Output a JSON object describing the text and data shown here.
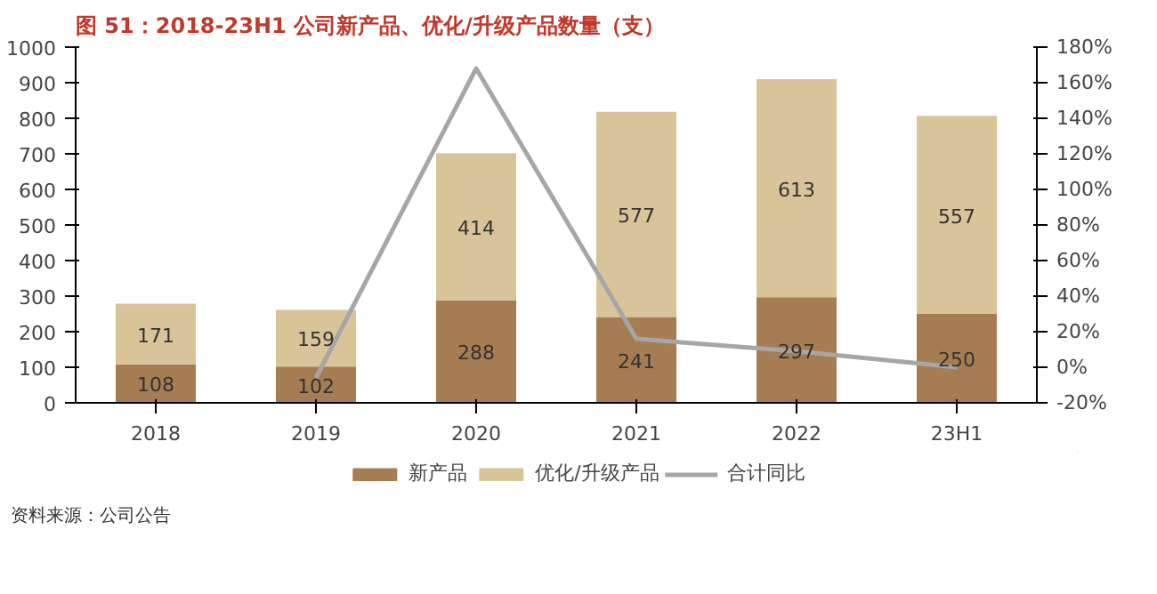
{
  "chart_data": {
    "type": "bar",
    "title": "图 51：2018-23H1 公司新产品、优化/升级产品数量（支）",
    "categories": [
      "2018",
      "2019",
      "2020",
      "2021",
      "2022",
      "23H1"
    ],
    "stacked": true,
    "legend": "bottom",
    "grid": false,
    "series": [
      {
        "name": "新产品",
        "color": "#a67c52",
        "values": [
          108,
          102,
          288,
          241,
          297,
          250
        ],
        "value_labels": [
          "108",
          "102",
          "288",
          "241",
          "297",
          "250"
        ]
      },
      {
        "name": "优化/升级产品",
        "color": "#d9c49a",
        "values": [
          171,
          159,
          414,
          577,
          613,
          557
        ],
        "value_labels": [
          "171",
          "159",
          "414",
          "577",
          "613",
          "557"
        ]
      },
      {
        "name": "合计同比",
        "type": "line",
        "axis": "y2",
        "color": "#a6a6a6",
        "values": [
          null,
          -6,
          168,
          16,
          9,
          0
        ]
      }
    ],
    "ylim": [
      0,
      1000
    ],
    "yticks": [
      0,
      100,
      200,
      300,
      400,
      500,
      600,
      700,
      800,
      900,
      1000
    ],
    "y2lim": [
      -20,
      180
    ],
    "y2ticks": [
      {
        "value": -20,
        "label": "-20%"
      },
      {
        "value": 0,
        "label": "0%"
      },
      {
        "value": 20,
        "label": "20%"
      },
      {
        "value": 40,
        "label": "40%"
      },
      {
        "value": 60,
        "label": "60%"
      },
      {
        "value": 80,
        "label": "80%"
      },
      {
        "value": 100,
        "label": "100%"
      },
      {
        "value": 120,
        "label": "120%"
      },
      {
        "value": 140,
        "label": "140%"
      },
      {
        "value": 160,
        "label": "160%"
      },
      {
        "value": 180,
        "label": "180%"
      }
    ],
    "annotations": [
      "资料来源：公司公告"
    ]
  }
}
